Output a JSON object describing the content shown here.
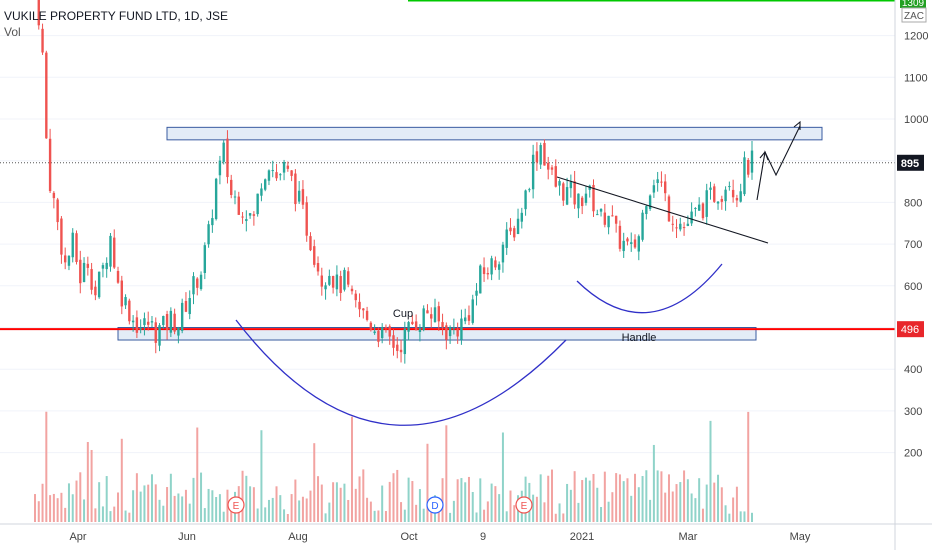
{
  "header": {
    "symbol": "VUKILE PROPERTY FUND LTD, 1D, JSE",
    "volume_label": "Vol"
  },
  "colors": {
    "up": "#26a69a",
    "down": "#ef5350",
    "vol_up": "#8fd3c9",
    "vol_down": "#f2a3a1",
    "support_line": "#ff0000",
    "top_line": "#00c800",
    "zone_fill": "#dce7f5",
    "zone_stroke": "#3a5ba0",
    "curve": "#3030c8",
    "price_tag_bg": "#131722",
    "support_tag_bg": "#e8262b",
    "axis_text": "#444444"
  },
  "chart_data": {
    "type": "candlestick",
    "price_axis": {
      "ticks": [
        "1300",
        "1200",
        "1100",
        "1000",
        "900",
        "800",
        "700",
        "600",
        "500",
        "400",
        "300",
        "200"
      ],
      "top_label": "1309",
      "currency": "ZAC"
    },
    "time_axis": {
      "ticks": [
        "Apr",
        "Jun",
        "Aug",
        "Oct",
        "9",
        "2021",
        "Mar",
        "May"
      ]
    },
    "current_price": 895,
    "support_level": 496,
    "resistance_zone": [
      950,
      980
    ],
    "support_zone": [
      470,
      500
    ],
    "annotations": {
      "cup_label": "Cup",
      "handle_label": "Handle"
    },
    "markers": [
      "E",
      "D",
      "E"
    ],
    "price_path": [
      [
        0,
        1300
      ],
      [
        1,
        1250
      ],
      [
        2,
        1150
      ],
      [
        3,
        950
      ],
      [
        4,
        850
      ],
      [
        6,
        750
      ],
      [
        8,
        650
      ],
      [
        10,
        700
      ],
      [
        12,
        620
      ],
      [
        14,
        660
      ],
      [
        16,
        580
      ],
      [
        18,
        640
      ],
      [
        20,
        720
      ],
      [
        22,
        600
      ],
      [
        24,
        560
      ],
      [
        26,
        520
      ],
      [
        28,
        500
      ],
      [
        30,
        510
      ],
      [
        32,
        490
      ],
      [
        34,
        500
      ],
      [
        36,
        520
      ],
      [
        38,
        510
      ],
      [
        40,
        560
      ],
      [
        42,
        600
      ],
      [
        44,
        640
      ],
      [
        46,
        720
      ],
      [
        48,
        850
      ],
      [
        50,
        920
      ],
      [
        52,
        820
      ],
      [
        54,
        800
      ],
      [
        56,
        780
      ],
      [
        58,
        760
      ],
      [
        60,
        860
      ],
      [
        62,
        900
      ],
      [
        64,
        860
      ],
      [
        66,
        880
      ],
      [
        68,
        850
      ],
      [
        70,
        800
      ],
      [
        72,
        740
      ],
      [
        74,
        680
      ],
      [
        76,
        620
      ],
      [
        78,
        640
      ],
      [
        80,
        600
      ],
      [
        82,
        610
      ],
      [
        84,
        560
      ],
      [
        86,
        540
      ],
      [
        88,
        520
      ],
      [
        90,
        500
      ],
      [
        92,
        480
      ],
      [
        94,
        470
      ],
      [
        96,
        450
      ],
      [
        98,
        480
      ],
      [
        100,
        510
      ],
      [
        102,
        520
      ],
      [
        104,
        540
      ],
      [
        106,
        520
      ],
      [
        108,
        500
      ],
      [
        110,
        490
      ],
      [
        112,
        500
      ],
      [
        114,
        520
      ],
      [
        116,
        560
      ],
      [
        118,
        620
      ],
      [
        120,
        640
      ],
      [
        122,
        660
      ],
      [
        124,
        700
      ],
      [
        126,
        720
      ],
      [
        128,
        760
      ],
      [
        130,
        820
      ],
      [
        132,
        900
      ],
      [
        134,
        940
      ],
      [
        136,
        880
      ],
      [
        138,
        840
      ],
      [
        140,
        830
      ],
      [
        142,
        820
      ],
      [
        144,
        800
      ],
      [
        146,
        830
      ],
      [
        148,
        800
      ],
      [
        150,
        760
      ],
      [
        152,
        780
      ],
      [
        154,
        720
      ],
      [
        156,
        700
      ],
      [
        158,
        680
      ],
      [
        160,
        720
      ],
      [
        162,
        820
      ],
      [
        164,
        860
      ],
      [
        166,
        840
      ],
      [
        168,
        780
      ],
      [
        170,
        760
      ],
      [
        172,
        740
      ],
      [
        174,
        760
      ],
      [
        176,
        780
      ],
      [
        178,
        800
      ],
      [
        180,
        820
      ],
      [
        182,
        830
      ],
      [
        184,
        860
      ],
      [
        186,
        820
      ],
      [
        188,
        880
      ],
      [
        190,
        895
      ]
    ]
  }
}
